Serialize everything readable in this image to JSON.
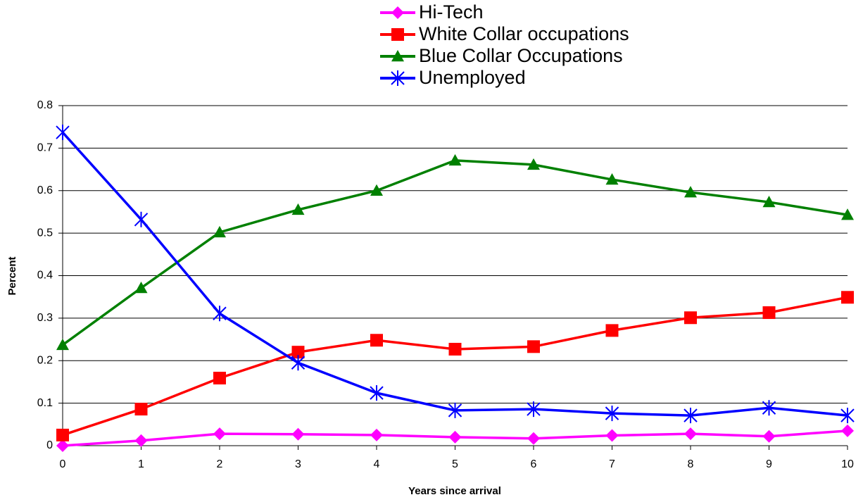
{
  "chart_data": {
    "type": "line",
    "x_label": "Years since arrival",
    "y_label": "Percent",
    "x": [
      0,
      1,
      2,
      3,
      4,
      5,
      6,
      7,
      8,
      9,
      10
    ],
    "series": [
      {
        "name": "Hi-Tech",
        "color": "#ff00ff",
        "marker": "diamond",
        "values": [
          0,
          0.012,
          0.028,
          0.027,
          0.025,
          0.02,
          0.017,
          0.024,
          0.028,
          0.022,
          0.035
        ]
      },
      {
        "name": "White Collar occupations",
        "color": "#ff0000",
        "marker": "square",
        "values": [
          0.025,
          0.086,
          0.159,
          0.22,
          0.248,
          0.227,
          0.233,
          0.271,
          0.301,
          0.313,
          0.349
        ]
      },
      {
        "name": "Blue Collar Occupations",
        "color": "#008000",
        "marker": "triangle",
        "values": [
          0.237,
          0.371,
          0.502,
          0.555,
          0.6,
          0.671,
          0.661,
          0.626,
          0.596,
          0.573,
          0.543
        ]
      },
      {
        "name": "Unemployed",
        "color": "#0000ff",
        "marker": "star",
        "values": [
          0.737,
          0.532,
          0.311,
          0.195,
          0.124,
          0.083,
          0.086,
          0.076,
          0.071,
          0.089,
          0.071
        ]
      }
    ],
    "xlim": [
      0,
      10
    ],
    "xticks": [
      0,
      1,
      2,
      3,
      4,
      5,
      6,
      7,
      8,
      9,
      10
    ],
    "ylim": [
      0,
      0.8
    ],
    "yticks": [
      0,
      0.1,
      0.2,
      0.3,
      0.4,
      0.5,
      0.6,
      0.7,
      0.8
    ],
    "grid": true,
    "legend": "top"
  }
}
